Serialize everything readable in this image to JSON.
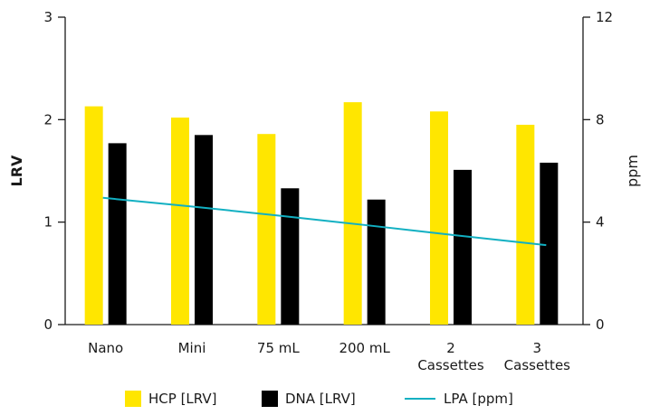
{
  "chart_data": {
    "type": "bar",
    "categories": [
      [
        "Nano"
      ],
      [
        "Mini"
      ],
      [
        "75 mL"
      ],
      [
        "200 mL"
      ],
      [
        "2",
        "Cassettes"
      ],
      [
        "3",
        "Cassettes"
      ]
    ],
    "series": [
      {
        "name": "HCP [LRV]",
        "type": "bar",
        "axis": "left",
        "color": "#ffe600",
        "values": [
          2.13,
          2.02,
          1.86,
          2.17,
          2.08,
          1.95
        ]
      },
      {
        "name": "DNA [LRV]",
        "type": "bar",
        "axis": "left",
        "color": "#000000",
        "values": [
          1.77,
          1.85,
          1.33,
          1.22,
          1.51,
          1.58
        ]
      },
      {
        "name": "LPA [ppm]",
        "type": "line",
        "axis": "right",
        "color": "#12b0c2",
        "values": [
          4.95,
          4.6,
          4.25,
          3.88,
          3.5,
          3.1
        ]
      }
    ],
    "yleft": {
      "label": "LRV",
      "lim": [
        0,
        3
      ],
      "ticks": [
        "0",
        "1",
        "2",
        "3"
      ]
    },
    "yright": {
      "label": "ppm",
      "lim": [
        0,
        12
      ],
      "ticks": [
        "0",
        "4",
        "8",
        "12"
      ]
    },
    "grid": false,
    "legend_position": "bottom-center"
  }
}
